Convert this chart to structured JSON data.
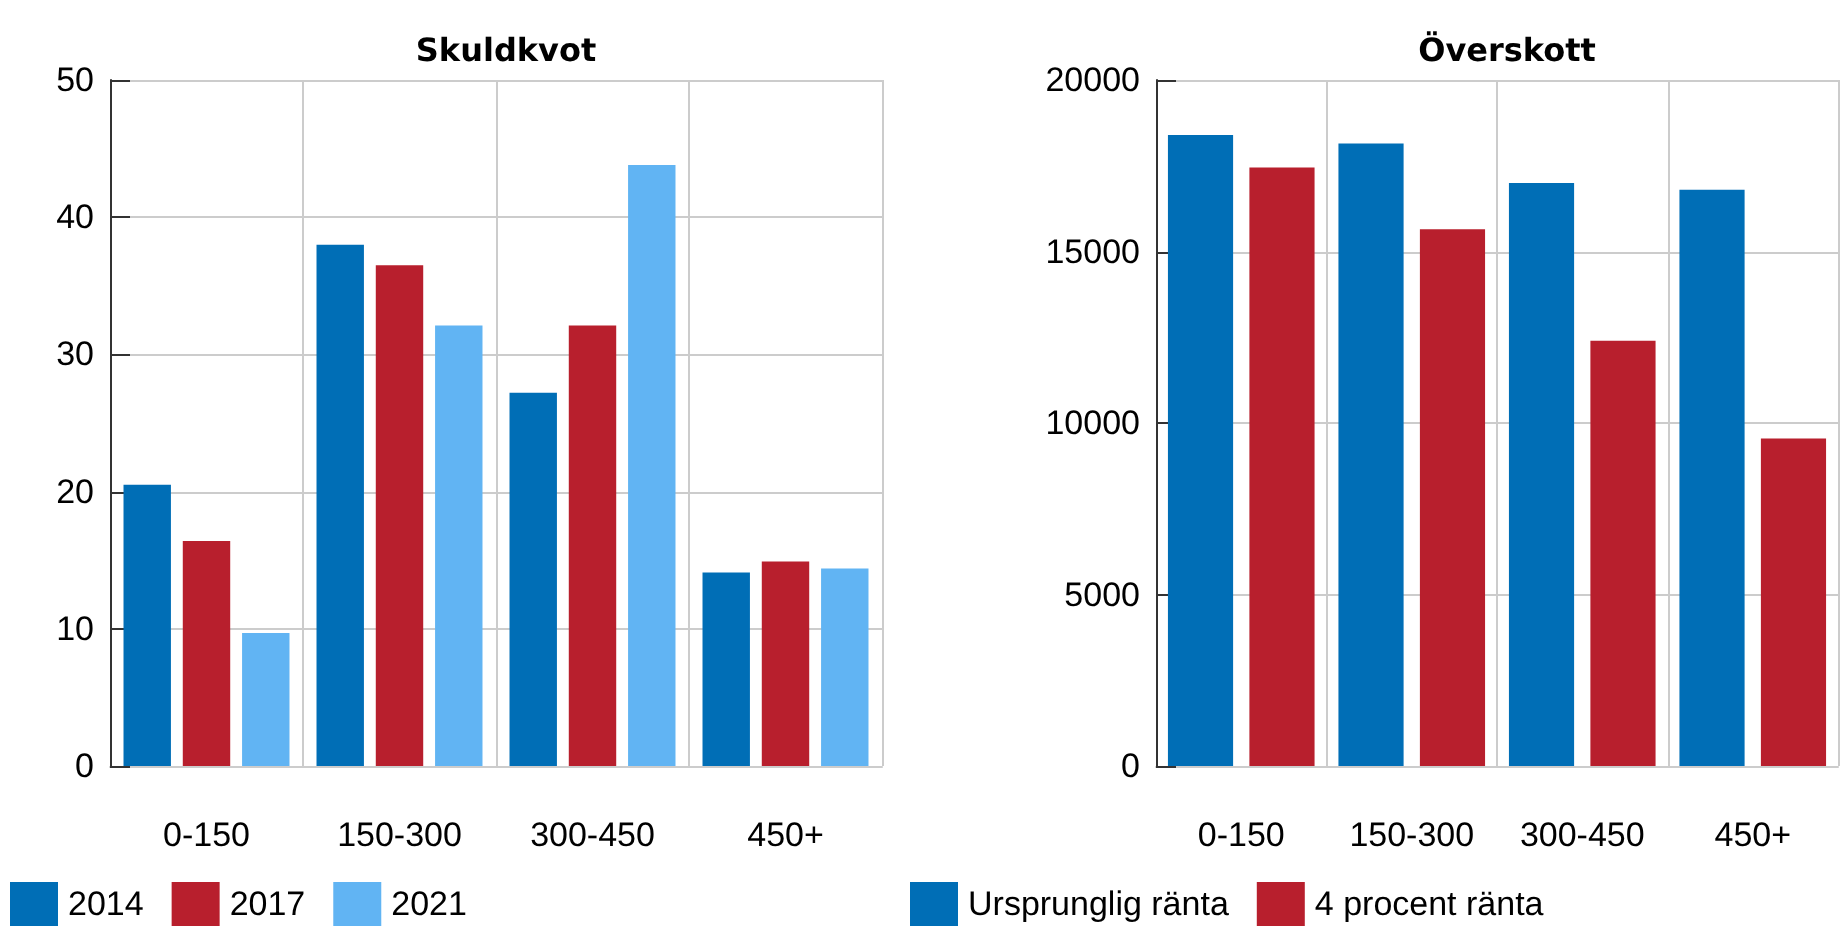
{
  "chart_data": [
    {
      "type": "bar",
      "title": "Skuldkvot",
      "categories": [
        "0-150",
        "150-300",
        "300-450",
        "450+"
      ],
      "series": [
        {
          "name": "2014",
          "color": "#006eb6",
          "values": [
            20.5,
            38.0,
            27.2,
            14.1
          ]
        },
        {
          "name": "2017",
          "color": "#b81f2d",
          "values": [
            16.4,
            36.5,
            32.1,
            14.9
          ]
        },
        {
          "name": "2021",
          "color": "#61b4f3",
          "values": [
            9.7,
            32.1,
            43.8,
            14.4
          ]
        }
      ],
      "ylim": [
        0,
        50
      ],
      "yticks": [
        0,
        10,
        20,
        30,
        40,
        50
      ],
      "grid": true,
      "legend": "bottom left"
    },
    {
      "type": "bar",
      "title": "Överskott",
      "categories": [
        "0-150",
        "150-300",
        "300-450",
        "450+"
      ],
      "series": [
        {
          "name": "Ursprunglig ränta",
          "color": "#006eb6",
          "values": [
            18400,
            18150,
            17000,
            16800
          ]
        },
        {
          "name": "4 procent ränta",
          "color": "#b81f2d",
          "values": [
            17450,
            15650,
            12400,
            9550
          ]
        }
      ],
      "ylim": [
        0,
        20000
      ],
      "yticks": [
        0,
        5000,
        10000,
        15000,
        20000
      ],
      "grid": true,
      "legend": "bottom left"
    }
  ]
}
